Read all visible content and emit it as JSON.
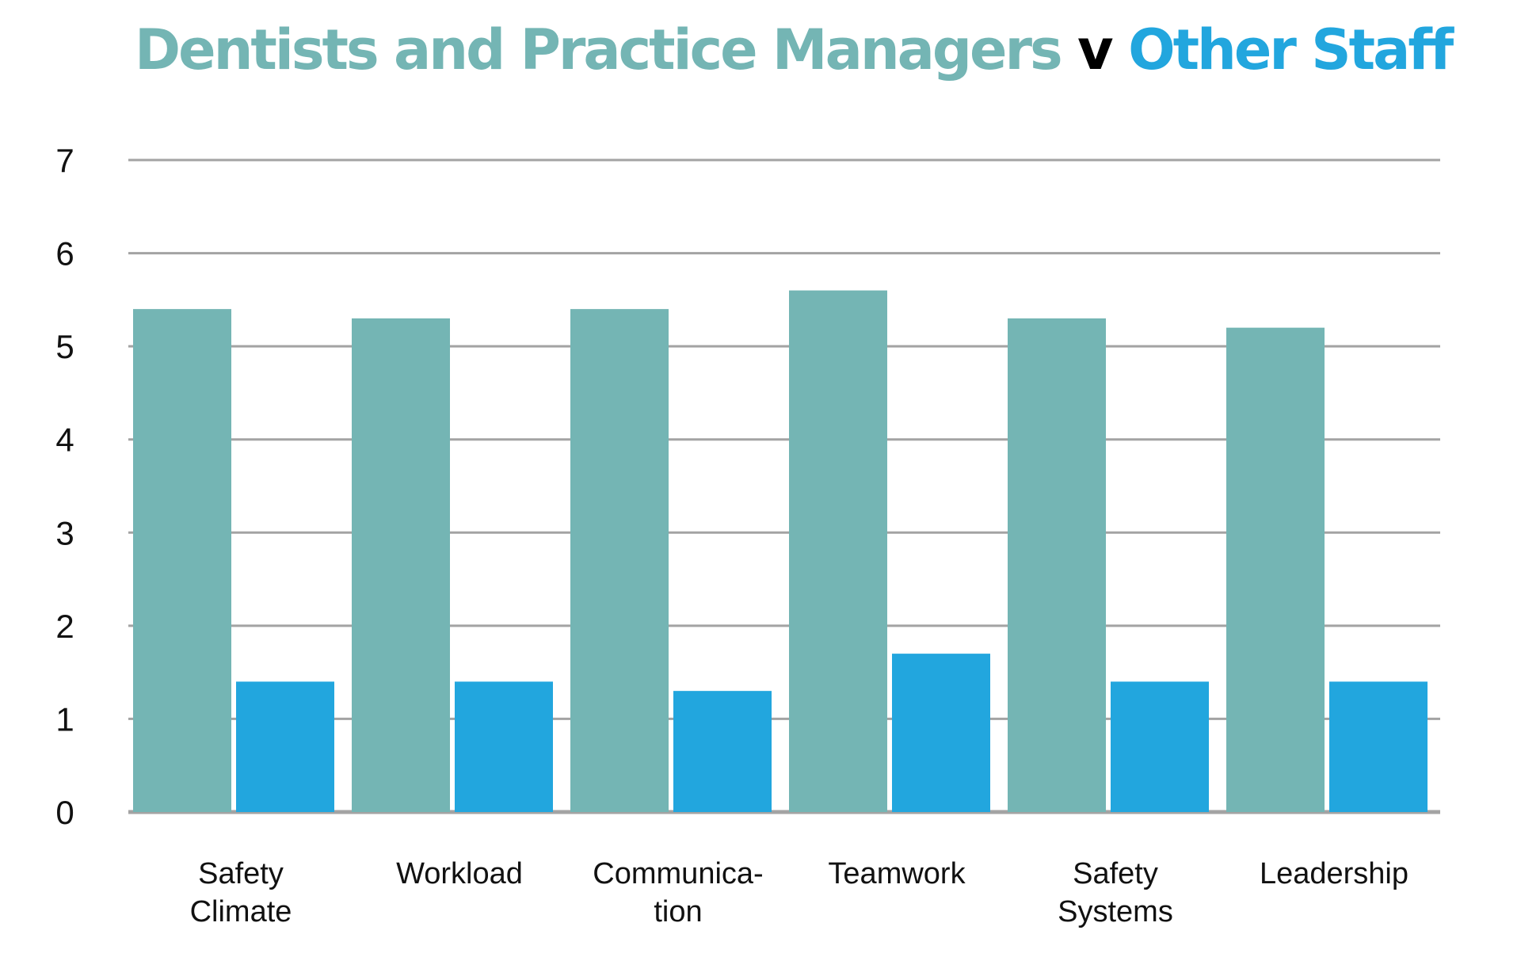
{
  "title": {
    "part1": "Dentists and Practice Managers",
    "separator": "v",
    "part2": "Other Staff"
  },
  "colors": {
    "dentists": "#74b5b4",
    "other_staff": "#22a6de",
    "gridline": "#a3a3a3",
    "separator": "#000000"
  },
  "chart_data": {
    "type": "bar",
    "title": "Dentists and Practice Managers v Other Staff",
    "xlabel": "",
    "ylabel": "",
    "categories": [
      [
        "Safety",
        "Climate"
      ],
      [
        "Workload"
      ],
      [
        "Communica-",
        "tion"
      ],
      [
        "Teamwork"
      ],
      [
        "Safety",
        "Systems"
      ],
      [
        "Leadership"
      ]
    ],
    "series": [
      {
        "name": "Dentists and Practice Managers",
        "color": "#74b5b4",
        "values": [
          5.4,
          5.3,
          5.4,
          5.6,
          5.3,
          5.2
        ]
      },
      {
        "name": "Other Staff",
        "color": "#22a6de",
        "values": [
          1.4,
          1.4,
          1.3,
          1.7,
          1.4,
          1.4
        ]
      }
    ],
    "ylim": [
      0,
      7
    ],
    "yticks": [
      "0",
      "1",
      "2",
      "3",
      "4",
      "5",
      "6",
      "7"
    ],
    "grid": true,
    "legend": "none"
  }
}
